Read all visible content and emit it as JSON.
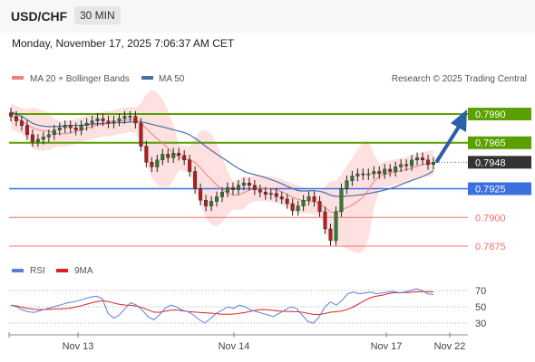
{
  "header": {
    "symbol": "USD/CHF",
    "timeframe": "30 MIN",
    "datetime": "Monday, November 17, 2025 7:06:37 AM CET"
  },
  "legend": {
    "ma20": "MA 20 + Bollinger Bands",
    "ma50": "MA 50",
    "credit": "Research © 2025 Trading Central",
    "rsi": "RSI",
    "rsi_ma": "9MA"
  },
  "colors": {
    "up_candle": "#2e7d32",
    "down_candle": "#b71c1c",
    "bollinger_band": "#fde0e0",
    "ma20": "#f08080",
    "ma50": "#4a6fa5",
    "resistance": "#5aa000",
    "pivot": "#3b6fe0",
    "support": "#f07070",
    "current_price": "#333333",
    "arrow": "#2d5fa8",
    "rsi": "#5b7fd6",
    "rsi_ma": "#e02020"
  },
  "chart_data": {
    "type": "candlestick",
    "levels": [
      {
        "label": "0.7990",
        "value": 0.799,
        "kind": "resistance"
      },
      {
        "label": "0.7965",
        "value": 0.7965,
        "kind": "resistance"
      },
      {
        "label": "0.7948",
        "value": 0.7948,
        "kind": "current"
      },
      {
        "label": "0.7925",
        "value": 0.7925,
        "kind": "pivot"
      },
      {
        "label": "0.7900",
        "value": 0.79,
        "kind": "support"
      },
      {
        "label": "0.7875",
        "value": 0.7875,
        "kind": "support"
      }
    ],
    "x_ticks": [
      "Nov 13",
      "Nov 14",
      "Nov 17",
      "Nov 22"
    ],
    "close_series": [
      0.7988,
      0.7984,
      0.798,
      0.7972,
      0.7966,
      0.7968,
      0.797,
      0.7972,
      0.7976,
      0.7978,
      0.798,
      0.7978,
      0.7976,
      0.798,
      0.7982,
      0.7984,
      0.7986,
      0.7984,
      0.7982,
      0.7984,
      0.7986,
      0.7988,
      0.7988,
      0.7982,
      0.7962,
      0.7948,
      0.7944,
      0.795,
      0.7955,
      0.7952,
      0.7956,
      0.7954,
      0.795,
      0.794,
      0.7925,
      0.7915,
      0.791,
      0.7914,
      0.7918,
      0.7922,
      0.7926,
      0.7924,
      0.7928,
      0.793,
      0.7928,
      0.7924,
      0.7922,
      0.792,
      0.7921,
      0.7918,
      0.7916,
      0.7912,
      0.7906,
      0.791,
      0.7915,
      0.7918,
      0.7914,
      0.7905,
      0.789,
      0.788,
      0.7905,
      0.7925,
      0.7932,
      0.7936,
      0.7938,
      0.7937,
      0.7938,
      0.794,
      0.7938,
      0.7942,
      0.794,
      0.7944,
      0.7946,
      0.7945,
      0.795,
      0.7952,
      0.795,
      0.7946,
      0.7948
    ],
    "rsi": {
      "ticks": [
        30,
        50,
        70
      ],
      "values": [
        52,
        50,
        46,
        44,
        43,
        45,
        47,
        49,
        51,
        53,
        55,
        56,
        58,
        60,
        62,
        63,
        60,
        42,
        36,
        40,
        48,
        55,
        52,
        46,
        38,
        34,
        40,
        48,
        52,
        50,
        46,
        44,
        40,
        34,
        30,
        36,
        42,
        46,
        50,
        48,
        52,
        50,
        46,
        44,
        42,
        40,
        38,
        42,
        46,
        50,
        48,
        40,
        32,
        30,
        38,
        50,
        56,
        52,
        58,
        66,
        68,
        66,
        67,
        68,
        66,
        67,
        68,
        69,
        67,
        68,
        70,
        72,
        70,
        66,
        65
      ]
    }
  }
}
